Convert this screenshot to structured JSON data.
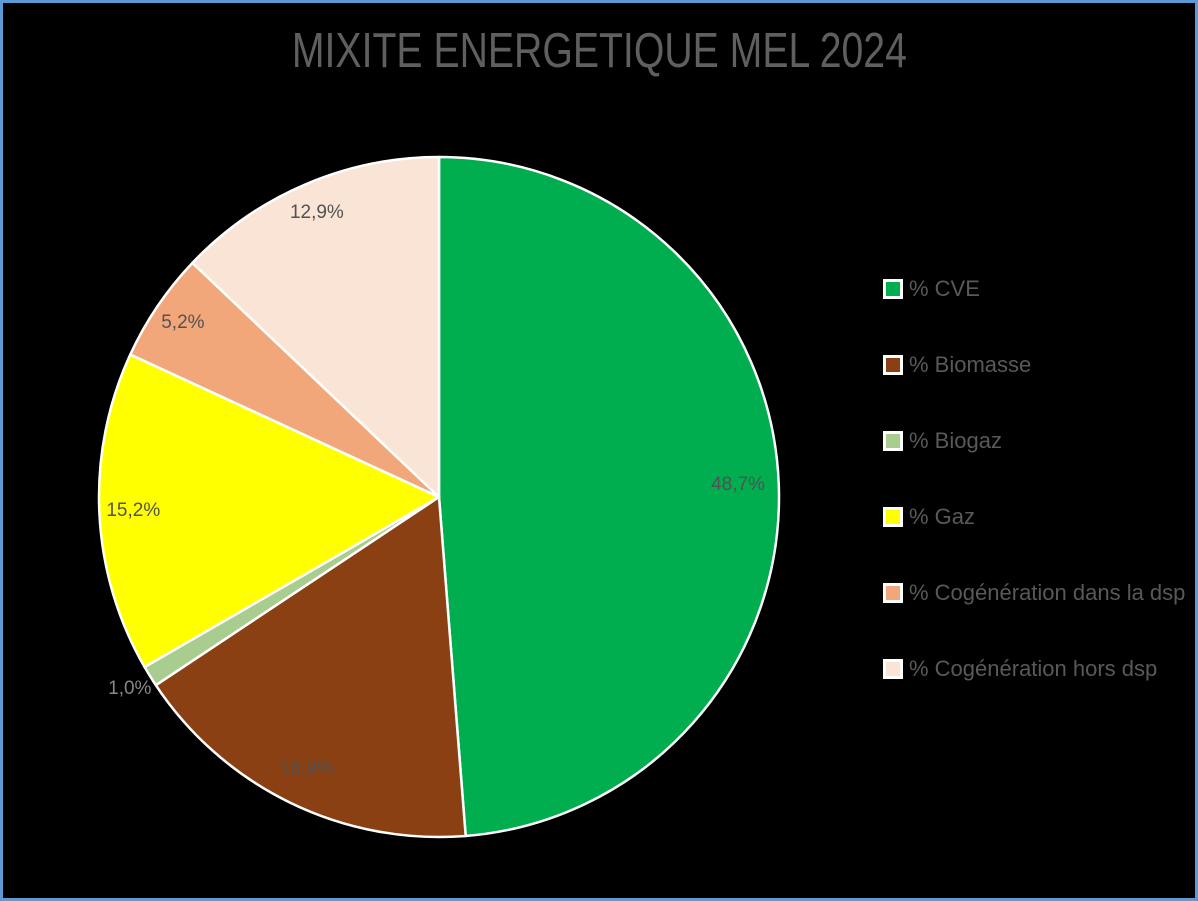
{
  "window": {
    "background": "#000000",
    "frame_border_color": "#5B9BD5"
  },
  "chart_data": {
    "type": "pie",
    "title": "MIXITE ENERGETIQUE MEL 2024",
    "title_color": "#5F5F5F",
    "legend_position": "right-middle",
    "legend_text_color": "#595959",
    "start_angle_deg": 0,
    "direction": "clockwise",
    "slice_border_color": "#FFFFFF",
    "label_color_inside": "#525252",
    "label_color_outside": "#878787",
    "slices": [
      {
        "legend_label": "% CVE",
        "value_pct": 48.7,
        "label": "48,7%",
        "color": "#00AE50",
        "label_r": 0.88,
        "label_placement": "inside"
      },
      {
        "legend_label": "% Biomasse",
        "value_pct": 16.9,
        "label": "16,9%",
        "color": "#8A4013",
        "label_r": 0.89,
        "label_placement": "inside"
      },
      {
        "legend_label": "% Biogaz",
        "value_pct": 1.0,
        "label": "1,0%",
        "color": "#A9CD8E",
        "label_r": 1.07,
        "label_placement": "outside"
      },
      {
        "legend_label": "% Gaz",
        "value_pct": 15.2,
        "label": "15,2%",
        "color": "#FFFF00",
        "label_r": 0.9,
        "label_placement": "inside"
      },
      {
        "legend_label": "% Cogénération dans la dsp",
        "value_pct": 5.2,
        "label": "5,2%",
        "color": "#F2A77B",
        "label_r": 0.91,
        "label_placement": "inside"
      },
      {
        "legend_label": "% Cogénération hors dsp",
        "value_pct": 12.9,
        "label": "12,9%",
        "color": "#F9E4D5",
        "label_r": 0.91,
        "label_placement": "inside"
      }
    ]
  }
}
